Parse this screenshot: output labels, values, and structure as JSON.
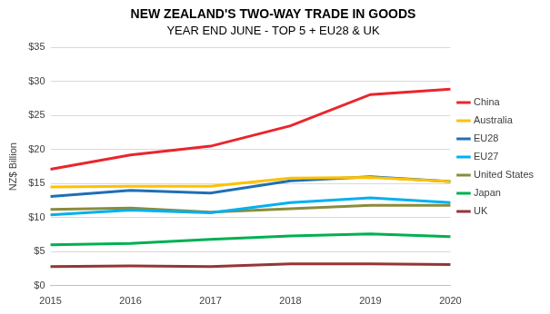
{
  "chart_data": {
    "type": "line",
    "title": "NEW ZEALAND'S TWO-WAY TRADE IN GOODS",
    "subtitle": "YEAR END JUNE - TOP 5 + EU28 & UK",
    "y_label": "NZ$ Billion",
    "categories": [
      "2015",
      "2016",
      "2017",
      "2018",
      "2019",
      "2020"
    ],
    "series": [
      {
        "name": "China",
        "color": "#e8262c",
        "values": [
          17.1,
          19.2,
          20.5,
          23.5,
          28.1,
          28.9
        ]
      },
      {
        "name": "Australia",
        "color": "#ffc000",
        "values": [
          14.5,
          14.6,
          14.6,
          15.8,
          15.9,
          15.3
        ]
      },
      {
        "name": "EU28",
        "color": "#1f6fb4",
        "values": [
          13.1,
          14.0,
          13.6,
          15.4,
          16.0,
          15.3
        ]
      },
      {
        "name": "EU27",
        "color": "#00b0f0",
        "values": [
          10.4,
          11.1,
          10.7,
          12.2,
          12.9,
          12.2
        ]
      },
      {
        "name": "United States",
        "color": "#8a8c3c",
        "values": [
          11.2,
          11.4,
          10.8,
          11.3,
          11.8,
          11.8
        ]
      },
      {
        "name": "Japan",
        "color": "#00b050",
        "values": [
          6.0,
          6.2,
          6.8,
          7.3,
          7.6,
          7.2
        ]
      },
      {
        "name": "UK",
        "color": "#943634",
        "values": [
          2.8,
          2.9,
          2.8,
          3.2,
          3.2,
          3.1
        ]
      }
    ],
    "ylim": [
      0,
      35
    ],
    "yticks": [
      {
        "value": 0,
        "label": "$0"
      },
      {
        "value": 5,
        "label": "$5"
      },
      {
        "value": 10,
        "label": "$10"
      },
      {
        "value": 15,
        "label": "$15"
      },
      {
        "value": 20,
        "label": "$20"
      },
      {
        "value": 25,
        "label": "$25"
      },
      {
        "value": 30,
        "label": "$30"
      },
      {
        "value": 35,
        "label": "$35"
      }
    ],
    "grid": true,
    "legend": "right"
  }
}
